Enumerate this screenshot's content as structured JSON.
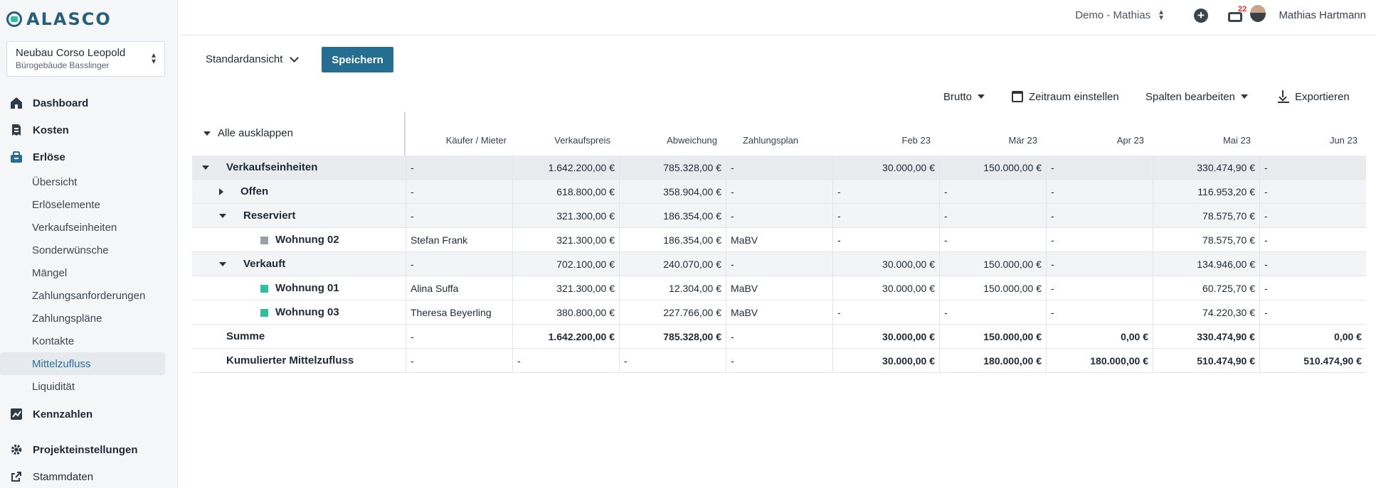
{
  "brand": {
    "name": "ALASCO",
    "color": "#2a5f7a",
    "accent": "#2fbf9f"
  },
  "project": {
    "name": "Neubau Corso Leopold",
    "subtitle": "Bürogebäude Basslinger"
  },
  "nav": {
    "dashboard": "Dashboard",
    "kosten": "Kosten",
    "erloese": "Erlöse",
    "sub": [
      "Übersicht",
      "Erlöselemente",
      "Verkaufseinheiten",
      "Sonderwünsche",
      "Mängel",
      "Zahlungsanforderungen",
      "Zahlungspläne",
      "Kontakte",
      "Mittelzufluss",
      "Liquidität"
    ],
    "active_sub": "Mittelzufluss",
    "kennzahlen": "Kennzahlen",
    "projekteinstellungen": "Projekteinstellungen",
    "stammdaten": "Stammdaten"
  },
  "topbar": {
    "workspace": "Demo - Mathias",
    "notifications": "22",
    "user": "Mathias Hartmann"
  },
  "toolbar": {
    "view": "Standardansicht",
    "save": "Speichern",
    "brutto": "Brutto",
    "zeitraum": "Zeitraum einstellen",
    "spalten": "Spalten bearbeiten",
    "export": "Exportieren"
  },
  "table": {
    "expand_all": "Alle ausklappen",
    "headers": [
      "Käufer / Mieter",
      "Verkaufspreis",
      "Abweichung",
      "Zahlungsplan",
      "Feb 23",
      "Mär 23",
      "Apr 23",
      "Mai 23",
      "Jun 23"
    ],
    "rows": [
      {
        "label": "Verkaufseinheiten",
        "cells": [
          "-",
          "1.642.200,00 €",
          "785.328,00 €",
          "-",
          "30.000,00 €",
          "150.000,00 €",
          "-",
          "330.474,90 €",
          "-"
        ]
      },
      {
        "label": "Offen",
        "cells": [
          "-",
          "618.800,00 €",
          "358.904,00 €",
          "-",
          "-",
          "-",
          "-",
          "116.953,20 €",
          "-"
        ]
      },
      {
        "label": "Reserviert",
        "cells": [
          "-",
          "321.300,00 €",
          "186.354,00 €",
          "-",
          "-",
          "-",
          "-",
          "78.575,70 €",
          "-"
        ]
      },
      {
        "label": "Wohnung 02",
        "cells": [
          "Stefan Frank",
          "321.300,00 €",
          "186.354,00 €",
          "MaBV",
          "-",
          "-",
          "-",
          "78.575,70 €",
          "-"
        ]
      },
      {
        "label": "Verkauft",
        "cells": [
          "-",
          "702.100,00 €",
          "240.070,00 €",
          "-",
          "30.000,00 €",
          "150.000,00 €",
          "-",
          "134.946,00 €",
          "-"
        ]
      },
      {
        "label": "Wohnung 01",
        "cells": [
          "Alina Suffa",
          "321.300,00 €",
          "12.304,00 €",
          "MaBV",
          "30.000,00 €",
          "150.000,00 €",
          "-",
          "60.725,70 €",
          "-"
        ]
      },
      {
        "label": "Wohnung 03",
        "cells": [
          "Theresa Beyerling",
          "380.800,00 €",
          "227.766,00 €",
          "MaBV",
          "-",
          "-",
          "-",
          "74.220,30 €",
          "-"
        ]
      },
      {
        "label": "Summe",
        "cells": [
          "-",
          "1.642.200,00 €",
          "785.328,00 €",
          "-",
          "30.000,00 €",
          "150.000,00 €",
          "0,00 €",
          "330.474,90 €",
          "0,00 €"
        ]
      },
      {
        "label": "Kumulierter Mittelzufluss",
        "cells": [
          "-",
          "-",
          "-",
          "-",
          "30.000,00 €",
          "180.000,00 €",
          "180.000,00 €",
          "510.474,90 €",
          "510.474,90 €"
        ]
      }
    ],
    "status_colors": {
      "reserved": "#9aa0a6",
      "sold": "#2fbf9f"
    }
  }
}
